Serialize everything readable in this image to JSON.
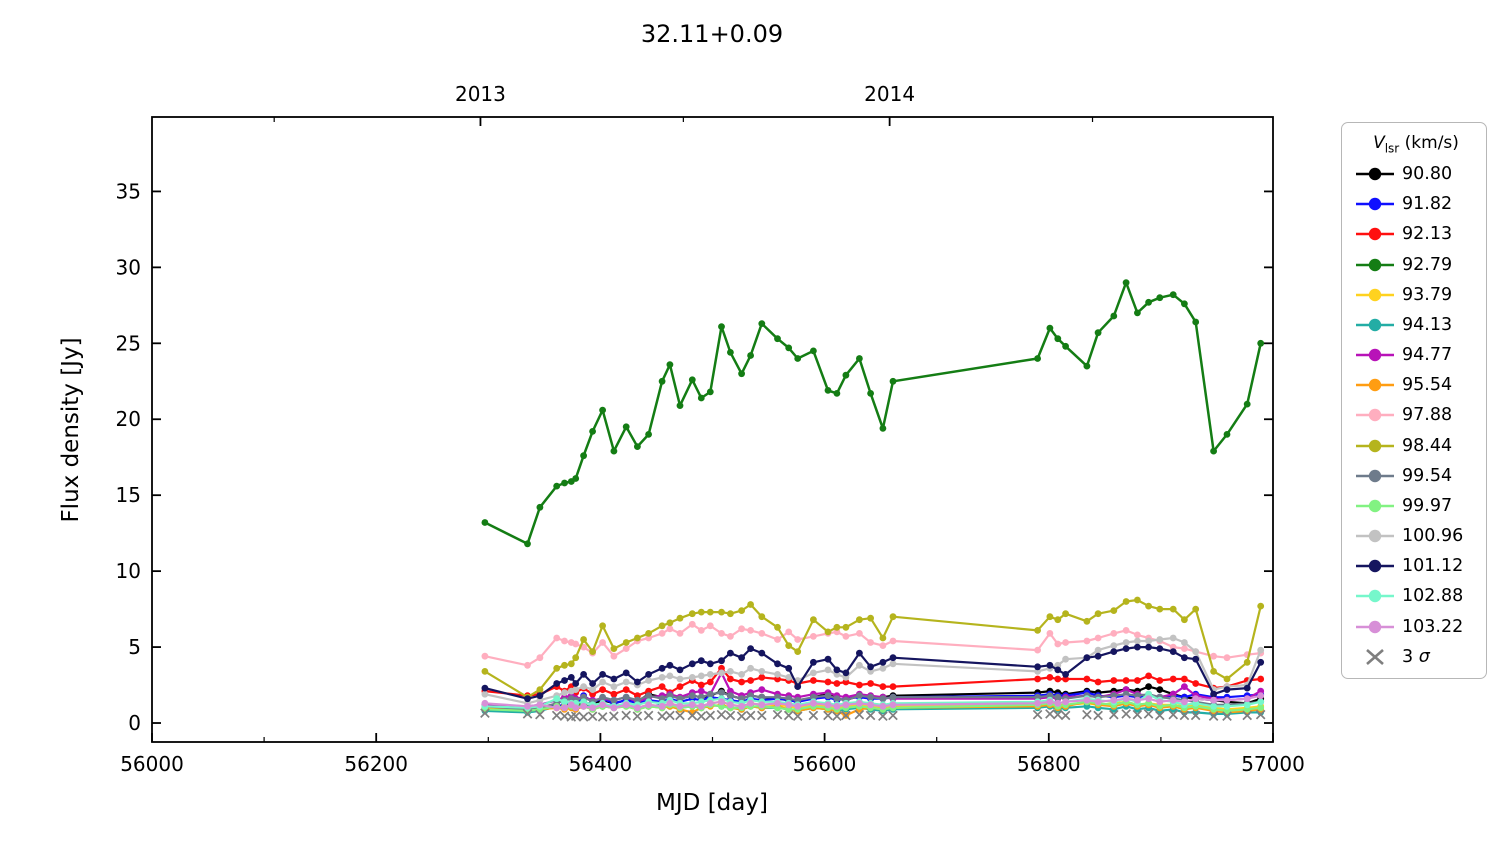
{
  "title": "32.11+0.09",
  "axes": {
    "xlabel": "MJD [day]",
    "ylabel": "Flux density [Jy]",
    "x_major_ticks": [
      56000,
      56200,
      56400,
      56600,
      56800,
      57000
    ],
    "x_minor_ticks": [
      56100,
      56300,
      56500,
      56700,
      56900
    ],
    "y_major_ticks": [
      0,
      5,
      10,
      15,
      20,
      25,
      30,
      35
    ],
    "top_year_ticks": [
      {
        "label": "2013",
        "mjd": 56293
      },
      {
        "label": "2014",
        "mjd": 56658
      }
    ],
    "top_minor_ticks_mjd": [
      56109,
      56474,
      56839
    ],
    "xlim": [
      56000,
      57000
    ],
    "ylim": [
      -1.25,
      39.9
    ]
  },
  "legend": {
    "title_v": "V",
    "title_sub": "lsr",
    "title_units": " (km/s)",
    "sigma_prefix": "3 ",
    "sigma_symbol": "σ"
  },
  "chart_data": {
    "type": "line",
    "title": "32.11+0.09",
    "xlabel": "MJD [day]",
    "ylabel": "Flux density [Jy]",
    "xlim": [
      56000,
      57000
    ],
    "ylim": [
      -1.25,
      39.9
    ],
    "legend_position": "outside-right",
    "legend_title": "V_lsr (km/s)",
    "grid": false,
    "x": [
      56297,
      56335,
      56346,
      56361,
      56368,
      56374,
      56378,
      56385,
      56393,
      56402,
      56412,
      56423,
      56433,
      56443,
      56455,
      56462,
      56471,
      56482,
      56490,
      56498,
      56508,
      56516,
      56526,
      56534,
      56544,
      56558,
      56568,
      56576,
      56590,
      56603,
      56611,
      56619,
      56631,
      56641,
      56652,
      56661,
      56790,
      56801,
      56808,
      56815,
      56834,
      56844,
      56858,
      56869,
      56879,
      56889,
      56899,
      56911,
      56921,
      56931,
      56947,
      56959,
      56977,
      56989
    ],
    "series": [
      {
        "name": "90.80",
        "color": "#000000",
        "marker": "o",
        "values": [
          1.0,
          0.9,
          1.0,
          1.2,
          1.1,
          1.3,
          1.2,
          1.4,
          1.2,
          1.5,
          1.3,
          1.5,
          1.4,
          1.9,
          1.7,
          1.9,
          1.6,
          1.8,
          1.7,
          1.8,
          2.1,
          1.8,
          1.6,
          1.8,
          1.7,
          1.6,
          1.5,
          1.4,
          1.7,
          1.9,
          1.6,
          1.5,
          1.8,
          1.6,
          1.7,
          1.8,
          2.0,
          2.1,
          2.0,
          1.9,
          2.1,
          2.0,
          2.1,
          2.2,
          2.1,
          2.4,
          2.2,
          1.9,
          1.7,
          1.6,
          1.5,
          1.4,
          1.3,
          1.6
        ]
      },
      {
        "name": "91.82",
        "color": "#0f0fff",
        "marker": "o",
        "values": [
          1.0,
          0.9,
          1.0,
          1.1,
          1.2,
          1.3,
          1.2,
          1.8,
          1.4,
          1.6,
          1.3,
          1.5,
          1.3,
          1.5,
          1.4,
          1.6,
          1.4,
          1.6,
          1.5,
          1.7,
          1.6,
          1.5,
          1.4,
          1.6,
          1.5,
          1.6,
          1.5,
          1.4,
          1.6,
          1.7,
          1.5,
          1.6,
          1.7,
          1.6,
          1.6,
          1.7,
          1.8,
          1.9,
          1.8,
          1.8,
          2.0,
          1.8,
          1.7,
          1.8,
          1.7,
          1.8,
          1.7,
          1.8,
          1.7,
          1.9,
          1.7,
          1.7,
          1.8,
          1.9
        ]
      },
      {
        "name": "92.13",
        "color": "#ff0f0f",
        "marker": "o",
        "values": [
          2.1,
          1.8,
          1.9,
          2.4,
          2.1,
          2.4,
          2.0,
          2.3,
          1.9,
          2.2,
          1.9,
          2.2,
          1.8,
          2.1,
          2.4,
          2.0,
          2.4,
          2.8,
          2.5,
          2.7,
          3.6,
          2.9,
          2.7,
          2.8,
          3.0,
          2.9,
          2.8,
          2.6,
          2.8,
          2.7,
          2.6,
          2.7,
          2.5,
          2.6,
          2.4,
          2.4,
          2.9,
          3.0,
          2.9,
          2.9,
          2.9,
          2.7,
          2.8,
          2.8,
          2.8,
          3.1,
          2.8,
          2.9,
          2.9,
          2.6,
          2.3,
          2.4,
          2.8,
          2.9
        ]
      },
      {
        "name": "92.79",
        "color": "#147d14",
        "marker": "o",
        "values": [
          13.2,
          11.8,
          14.2,
          15.6,
          15.8,
          15.9,
          16.1,
          17.6,
          19.2,
          20.6,
          17.9,
          19.5,
          18.2,
          19.0,
          22.5,
          23.6,
          20.9,
          22.6,
          21.4,
          21.8,
          26.1,
          24.4,
          23.0,
          24.2,
          26.3,
          25.3,
          24.7,
          24.0,
          24.5,
          21.9,
          21.7,
          22.9,
          24.0,
          21.7,
          19.4,
          22.5,
          24.0,
          26.0,
          25.3,
          24.8,
          23.5,
          25.7,
          26.8,
          29.0,
          27.0,
          27.7,
          28.0,
          28.2,
          27.6,
          26.4,
          17.9,
          19.0,
          21.0,
          25.0
        ]
      },
      {
        "name": "93.79",
        "color": "#ffd21f",
        "marker": "o",
        "values": [
          0.9,
          0.8,
          0.9,
          1.0,
          1.1,
          1.0,
          1.1,
          1.2,
          1.0,
          1.2,
          1.1,
          1.2,
          1.0,
          1.2,
          1.1,
          1.3,
          1.1,
          1.2,
          1.1,
          1.3,
          1.4,
          1.2,
          1.1,
          1.3,
          1.2,
          1.2,
          1.1,
          1.0,
          1.2,
          1.1,
          1.0,
          1.1,
          1.2,
          1.1,
          1.0,
          1.1,
          1.2,
          1.3,
          1.2,
          1.2,
          1.3,
          1.2,
          1.3,
          1.4,
          1.2,
          1.3,
          1.2,
          1.2,
          1.1,
          1.2,
          1.0,
          0.9,
          1.0,
          1.1
        ]
      },
      {
        "name": "94.13",
        "color": "#23ada5",
        "marker": "o",
        "values": [
          0.8,
          0.7,
          0.8,
          1.1,
          1.0,
          1.1,
          1.0,
          1.2,
          1.0,
          1.1,
          1.0,
          1.2,
          1.0,
          1.1,
          1.2,
          1.1,
          1.0,
          1.1,
          1.0,
          1.2,
          1.1,
          1.0,
          0.9,
          1.1,
          1.0,
          1.0,
          0.9,
          0.8,
          1.0,
          0.9,
          0.8,
          0.9,
          1.0,
          0.9,
          0.8,
          0.9,
          1.0,
          1.1,
          0.9,
          1.0,
          1.1,
          1.0,
          0.9,
          1.1,
          0.9,
          1.0,
          0.8,
          0.9,
          0.7,
          0.7,
          0.6,
          0.6,
          0.7,
          0.7
        ]
      },
      {
        "name": "94.77",
        "color": "#b812b8",
        "marker": "o",
        "values": [
          1.2,
          1.1,
          1.2,
          1.5,
          1.7,
          1.8,
          1.6,
          1.7,
          1.5,
          1.6,
          1.5,
          1.7,
          1.4,
          1.7,
          1.8,
          1.9,
          1.7,
          2.0,
          2.1,
          1.9,
          3.3,
          2.1,
          1.8,
          2.0,
          2.2,
          1.9,
          1.8,
          1.7,
          1.9,
          2.0,
          1.8,
          1.7,
          1.9,
          1.8,
          1.7,
          1.6,
          1.6,
          1.7,
          1.6,
          1.7,
          1.8,
          1.7,
          1.9,
          2.2,
          1.9,
          1.8,
          1.7,
          1.9,
          2.4,
          1.8,
          1.6,
          1.5,
          1.6,
          2.1
        ]
      },
      {
        "name": "95.54",
        "color": "#ff9d12",
        "marker": "o",
        "values": [
          1.0,
          0.8,
          0.9,
          1.0,
          0.9,
          1.0,
          0.9,
          1.1,
          0.9,
          1.1,
          1.0,
          1.1,
          0.9,
          1.1,
          1.0,
          1.1,
          0.9,
          0.7,
          1.0,
          1.1,
          1.2,
          1.0,
          0.9,
          1.1,
          1.0,
          1.1,
          0.9,
          0.8,
          1.0,
          0.9,
          0.8,
          0.5,
          0.9,
          1.0,
          0.9,
          1.0,
          1.1,
          1.2,
          1.0,
          1.1,
          1.4,
          1.2,
          1.1,
          1.3,
          1.1,
          1.2,
          1.0,
          1.1,
          0.9,
          1.0,
          0.8,
          0.7,
          0.8,
          0.9
        ]
      },
      {
        "name": "97.88",
        "color": "#ffaebf",
        "marker": "o",
        "values": [
          4.4,
          3.8,
          4.3,
          5.6,
          5.4,
          5.3,
          5.2,
          5.0,
          4.6,
          5.3,
          4.4,
          4.9,
          5.4,
          5.6,
          5.9,
          6.2,
          5.9,
          6.5,
          6.1,
          6.4,
          5.9,
          5.7,
          6.2,
          6.1,
          5.9,
          5.5,
          6.0,
          5.5,
          5.7,
          5.9,
          6.0,
          5.7,
          5.9,
          5.3,
          5.1,
          5.4,
          4.8,
          5.9,
          5.2,
          5.3,
          5.4,
          5.6,
          5.9,
          6.1,
          5.8,
          5.6,
          5.4,
          5.0,
          4.9,
          4.7,
          4.4,
          4.3,
          4.5,
          4.6
        ]
      },
      {
        "name": "98.44",
        "color": "#b5b41d",
        "marker": "o",
        "values": [
          3.4,
          1.7,
          2.2,
          3.6,
          3.8,
          3.9,
          4.3,
          5.5,
          4.7,
          6.4,
          4.9,
          5.3,
          5.6,
          5.9,
          6.4,
          6.6,
          6.9,
          7.2,
          7.3,
          7.3,
          7.3,
          7.2,
          7.4,
          7.8,
          7.0,
          6.3,
          5.1,
          4.7,
          6.8,
          6.0,
          6.3,
          6.3,
          6.8,
          6.9,
          5.6,
          7.0,
          6.1,
          7.0,
          6.8,
          7.2,
          6.7,
          7.2,
          7.4,
          8.0,
          8.1,
          7.7,
          7.5,
          7.5,
          6.8,
          7.5,
          3.4,
          2.9,
          4.0,
          7.7
        ]
      },
      {
        "name": "99.54",
        "color": "#6e7b8b",
        "marker": "o",
        "values": [
          1.1,
          0.9,
          1.0,
          1.3,
          1.5,
          1.6,
          1.5,
          1.7,
          1.4,
          1.7,
          1.5,
          1.7,
          1.5,
          1.8,
          1.6,
          1.8,
          1.6,
          1.8,
          1.7,
          1.9,
          2.0,
          1.8,
          1.6,
          1.8,
          1.7,
          1.7,
          1.6,
          1.5,
          1.7,
          1.8,
          1.6,
          1.5,
          1.8,
          1.7,
          1.6,
          1.7,
          1.7,
          1.8,
          1.7,
          1.6,
          1.8,
          1.7,
          1.8,
          1.9,
          1.8,
          1.9,
          1.7,
          1.6,
          1.5,
          1.4,
          1.2,
          1.2,
          1.3,
          1.4
        ]
      },
      {
        "name": "99.97",
        "color": "#82f282",
        "marker": "o",
        "values": [
          0.9,
          0.8,
          0.9,
          1.1,
          1.0,
          1.1,
          1.0,
          1.1,
          0.9,
          1.1,
          1.0,
          1.1,
          0.9,
          1.1,
          1.0,
          1.2,
          1.0,
          1.1,
          1.0,
          1.2,
          1.1,
          1.0,
          1.0,
          1.1,
          1.1,
          1.0,
          0.9,
          0.9,
          1.1,
          1.0,
          0.9,
          1.0,
          1.1,
          1.0,
          0.9,
          1.0,
          1.2,
          1.3,
          1.1,
          1.2,
          1.4,
          1.3,
          1.2,
          1.4,
          1.2,
          1.3,
          1.1,
          1.2,
          1.0,
          1.1,
          0.9,
          0.8,
          0.9,
          1.0
        ]
      },
      {
        "name": "100.96",
        "color": "#c2c2c2",
        "marker": "o",
        "values": [
          1.9,
          1.3,
          1.5,
          1.8,
          2.0,
          2.1,
          2.2,
          2.4,
          2.2,
          2.7,
          2.4,
          2.7,
          2.5,
          2.8,
          3.0,
          3.1,
          2.9,
          3.0,
          3.1,
          3.2,
          3.3,
          3.4,
          3.2,
          3.6,
          3.4,
          3.2,
          3.0,
          2.8,
          3.3,
          3.5,
          3.2,
          3.0,
          3.8,
          3.4,
          3.6,
          3.9,
          3.4,
          3.6,
          3.8,
          4.2,
          4.3,
          4.8,
          5.1,
          5.3,
          5.4,
          5.4,
          5.5,
          5.6,
          5.3,
          4.7,
          2.2,
          2.4,
          2.5,
          4.8
        ]
      },
      {
        "name": "101.12",
        "color": "#15155f",
        "marker": "o",
        "values": [
          2.3,
          1.6,
          1.8,
          2.6,
          2.8,
          3.0,
          2.6,
          3.2,
          2.6,
          3.2,
          2.9,
          3.3,
          2.7,
          3.2,
          3.6,
          3.8,
          3.5,
          3.9,
          4.1,
          3.9,
          4.1,
          4.6,
          4.3,
          4.9,
          4.6,
          3.9,
          3.6,
          2.4,
          4.0,
          4.2,
          3.5,
          3.3,
          4.6,
          3.7,
          4.0,
          4.3,
          3.7,
          3.8,
          3.5,
          3.2,
          4.3,
          4.4,
          4.7,
          4.9,
          5.0,
          5.0,
          4.9,
          4.7,
          4.3,
          4.2,
          1.9,
          2.2,
          2.3,
          4.0
        ]
      },
      {
        "name": "102.88",
        "color": "#76f7cb",
        "marker": "o",
        "values": [
          1.1,
          1.0,
          1.1,
          1.6,
          1.4,
          1.3,
          1.3,
          1.4,
          1.2,
          1.3,
          1.1,
          1.3,
          1.2,
          1.4,
          1.3,
          1.5,
          1.3,
          1.3,
          1.4,
          1.5,
          1.6,
          1.4,
          1.3,
          1.5,
          1.4,
          1.4,
          1.3,
          1.2,
          1.4,
          1.3,
          1.2,
          1.3,
          1.4,
          1.3,
          1.2,
          1.3,
          1.4,
          1.5,
          1.3,
          1.4,
          1.6,
          1.5,
          1.4,
          1.6,
          1.4,
          1.9,
          1.5,
          1.4,
          1.2,
          1.3,
          1.1,
          1.1,
          1.2,
          1.4
        ]
      },
      {
        "name": "103.22",
        "color": "#d78fd7",
        "marker": "o",
        "values": [
          1.3,
          1.1,
          1.2,
          1.0,
          1.0,
          1.2,
          1.0,
          1.1,
          1.0,
          1.2,
          1.0,
          1.2,
          1.0,
          1.2,
          1.1,
          1.3,
          1.1,
          1.2,
          1.1,
          1.3,
          1.4,
          1.2,
          1.1,
          1.3,
          1.2,
          1.3,
          1.2,
          1.1,
          1.3,
          1.2,
          1.1,
          1.2,
          1.3,
          1.2,
          1.1,
          1.2,
          1.3,
          1.4,
          1.3,
          1.4,
          1.5,
          1.4,
          1.5,
          1.6,
          1.5,
          1.6,
          1.4,
          1.5,
          1.4,
          1.6,
          1.5,
          1.5,
          1.6,
          1.8
        ]
      },
      {
        "name": "3 σ",
        "color": "#7f7f7f",
        "marker": "x",
        "values": [
          0.65,
          0.6,
          0.55,
          0.5,
          0.45,
          0.4,
          0.45,
          0.4,
          0.45,
          0.4,
          0.45,
          0.5,
          0.45,
          0.5,
          0.45,
          0.5,
          0.5,
          0.5,
          0.45,
          0.5,
          0.55,
          0.5,
          0.45,
          0.5,
          0.5,
          0.55,
          0.5,
          0.45,
          0.5,
          0.5,
          0.45,
          0.5,
          0.55,
          0.5,
          0.45,
          0.5,
          0.55,
          0.6,
          0.55,
          0.5,
          0.55,
          0.5,
          0.55,
          0.6,
          0.55,
          0.6,
          0.5,
          0.55,
          0.5,
          0.5,
          0.45,
          0.45,
          0.5,
          0.55
        ]
      }
    ]
  }
}
